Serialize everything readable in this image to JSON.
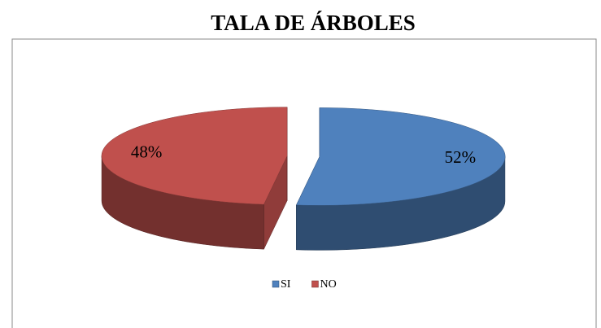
{
  "chart_data": {
    "type": "pie",
    "title": "TALA DE ÁRBOLES",
    "categories": [
      "SI",
      "NO"
    ],
    "values": [
      52,
      48
    ],
    "value_labels": [
      "52%",
      "48%"
    ],
    "colors": [
      "#4f81bd",
      "#c0504d"
    ],
    "legend": "bottom"
  }
}
